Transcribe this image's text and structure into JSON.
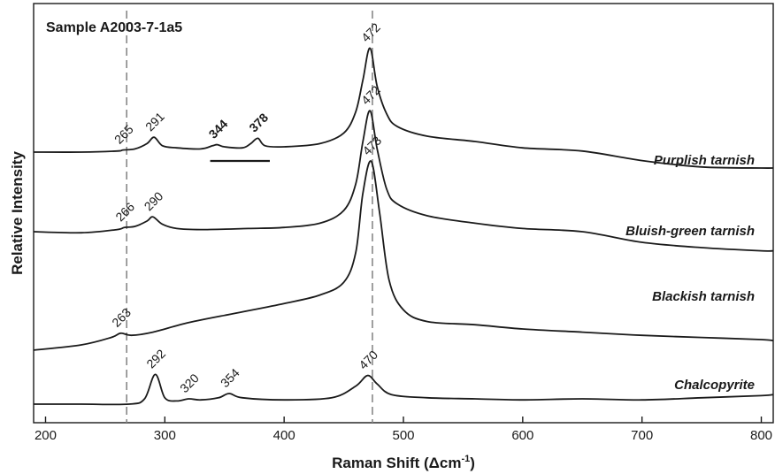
{
  "chart_data": {
    "type": "line",
    "sample_label": "Sample A2003-7-1a5",
    "xlabel": "Raman Shift (Δcm",
    "xlabel_sup": "-1",
    "xlabel_tail": ")",
    "ylabel": "Relative Intensity",
    "xlim": [
      190,
      810
    ],
    "x_ticks": [
      200,
      300,
      400,
      500,
      600,
      700,
      800
    ],
    "x_tick_labels": [
      "200",
      "300",
      "400",
      "500",
      "600",
      "700",
      "800"
    ],
    "y_ticks_shown": false,
    "grid": false,
    "legend": "none",
    "reference_lines": [
      268,
      474
    ],
    "series": [
      {
        "name": "Purplish tarnish",
        "offset": 0.0,
        "x": [
          190,
          230,
          260,
          265,
          275,
          285,
          291,
          298,
          310,
          330,
          340,
          344,
          350,
          365,
          372,
          378,
          384,
          400,
          430,
          450,
          460,
          466,
          472,
          478,
          486,
          495,
          520,
          560,
          600,
          650,
          700,
          750,
          800,
          810
        ],
        "y": [
          0.0,
          0.0,
          0.01,
          0.02,
          0.03,
          0.08,
          0.14,
          0.06,
          0.04,
          0.03,
          0.06,
          0.07,
          0.05,
          0.04,
          0.08,
          0.13,
          0.06,
          0.05,
          0.08,
          0.18,
          0.38,
          0.68,
          0.98,
          0.62,
          0.36,
          0.24,
          0.15,
          0.1,
          0.04,
          0.01,
          -0.08,
          -0.14,
          -0.15,
          -0.15
        ]
      },
      {
        "name": "Bluish-green tarnish",
        "offset": 0.0,
        "x": [
          190,
          230,
          260,
          266,
          275,
          285,
          290,
          298,
          310,
          330,
          370,
          400,
          430,
          450,
          460,
          466,
          472,
          478,
          486,
          495,
          520,
          560,
          600,
          650,
          700,
          750,
          800,
          810
        ],
        "y": [
          0.0,
          -0.01,
          0.02,
          0.04,
          0.05,
          0.1,
          0.14,
          0.07,
          0.03,
          0.02,
          0.03,
          0.04,
          0.08,
          0.2,
          0.45,
          0.85,
          1.14,
          0.78,
          0.4,
          0.26,
          0.15,
          0.08,
          0.03,
          0.0,
          -0.1,
          -0.15,
          -0.18,
          -0.18
        ]
      },
      {
        "name": "Blackish tarnish",
        "offset": 0.0,
        "x": [
          190,
          230,
          255,
          263,
          272,
          290,
          320,
          360,
          400,
          430,
          450,
          460,
          466,
          473,
          480,
          488,
          500,
          520,
          560,
          600,
          650,
          700,
          750,
          800,
          810
        ],
        "y": [
          0.0,
          0.05,
          0.12,
          0.16,
          0.14,
          0.17,
          0.26,
          0.35,
          0.44,
          0.52,
          0.64,
          0.92,
          1.48,
          1.78,
          1.3,
          0.66,
          0.38,
          0.27,
          0.24,
          0.2,
          0.17,
          0.14,
          0.12,
          0.1,
          0.09
        ]
      },
      {
        "name": "Chalcopyrite",
        "offset": 0.0,
        "x": [
          190,
          230,
          270,
          283,
          292,
          300,
          310,
          320,
          330,
          345,
          354,
          365,
          400,
          440,
          460,
          470,
          478,
          490,
          520,
          560,
          600,
          650,
          700,
          750,
          800,
          810
        ],
        "y": [
          0.0,
          0.0,
          0.0,
          0.05,
          0.28,
          0.06,
          0.03,
          0.05,
          0.04,
          0.06,
          0.1,
          0.06,
          0.04,
          0.06,
          0.17,
          0.27,
          0.19,
          0.09,
          0.06,
          0.05,
          0.04,
          0.05,
          0.04,
          0.06,
          0.08,
          0.09
        ]
      }
    ],
    "series_labels": [
      "Purplish tarnish",
      "Bluish-green tarnish",
      "Blackish tarnish",
      "Chalcopyrite"
    ],
    "peak_annotations": [
      {
        "series": 0,
        "x": 265,
        "text": "265",
        "bold": false
      },
      {
        "series": 0,
        "x": 291,
        "text": "291",
        "bold": false
      },
      {
        "series": 0,
        "x": 344,
        "text": "344",
        "bold": true
      },
      {
        "series": 0,
        "x": 378,
        "text": "378",
        "bold": true
      },
      {
        "series": 0,
        "x": 472,
        "text": "472",
        "bold": false
      },
      {
        "series": 1,
        "x": 266,
        "text": "266",
        "bold": false
      },
      {
        "series": 1,
        "x": 290,
        "text": "290",
        "bold": false
      },
      {
        "series": 1,
        "x": 472,
        "text": "472",
        "bold": false
      },
      {
        "series": 2,
        "x": 263,
        "text": "263",
        "bold": false
      },
      {
        "series": 2,
        "x": 473,
        "text": "473",
        "bold": false
      },
      {
        "series": 3,
        "x": 292,
        "text": "292",
        "bold": false
      },
      {
        "series": 3,
        "x": 320,
        "text": "320",
        "bold": false
      },
      {
        "series": 3,
        "x": 354,
        "text": "354",
        "bold": false
      },
      {
        "series": 3,
        "x": 470,
        "text": "470",
        "bold": false
      }
    ],
    "bracket": {
      "series": 0,
      "x_start": 338,
      "x_end": 388
    },
    "colors": {
      "line": "#1a1a1a",
      "reference": "#888888",
      "background": "#ffffff"
    }
  }
}
